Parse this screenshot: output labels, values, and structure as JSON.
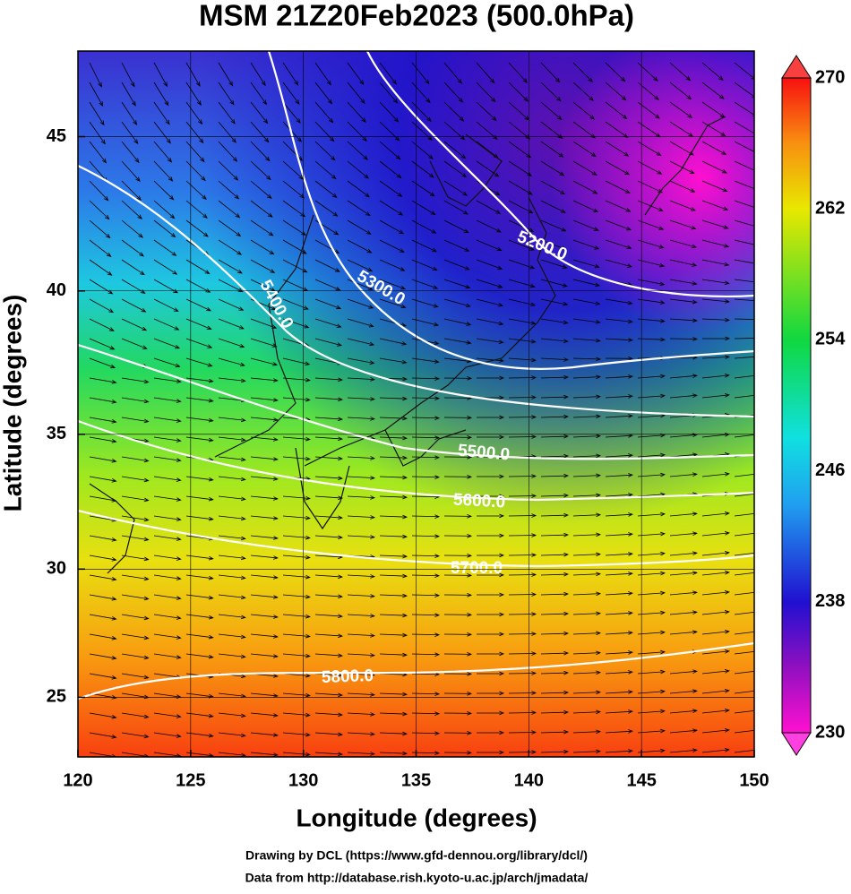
{
  "map": {
    "title": "MSM 21Z20Feb2023 (500.0hPa)",
    "xlabel": "Longitude (degrees)",
    "ylabel": "Latitude  (degrees)",
    "xlim": [
      120,
      150
    ],
    "ylim": [
      22.6,
      47.6
    ],
    "xticks": [
      120,
      125,
      130,
      135,
      140,
      145,
      150
    ],
    "yticks": [
      25,
      30,
      35,
      40,
      45
    ],
    "grid": true,
    "colorbar": {
      "lim": [
        230,
        270
      ],
      "ticks": [
        230,
        238,
        246,
        254,
        262,
        270
      ]
    },
    "contour_labels": [
      "5200.0",
      "5300.0",
      "5400.0",
      "5500.0",
      "5600.0",
      "5700.0",
      "5800.0"
    ],
    "credits": [
      "Drawing by DCL (https://www.gfd-dennou.org/library/dcl/)",
      "Data from http://database.rish.kyoto-u.ac.jp/arch/jmadata/"
    ]
  }
}
